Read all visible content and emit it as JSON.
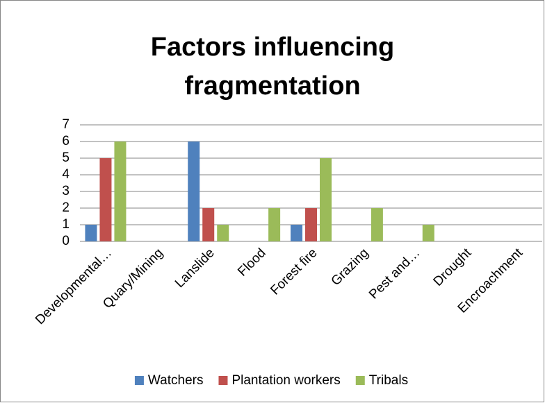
{
  "chart_data": {
    "type": "bar",
    "title": "Factors influencing fragmentation",
    "categories": [
      "Developmental…",
      "Quary/Mining",
      "Lanslide",
      "Flood",
      "Forest fire",
      "Grazing",
      "Pest and…",
      "Drought",
      "Encroachment"
    ],
    "series": [
      {
        "name": "Watchers",
        "color": "#4f81bd",
        "values": [
          1,
          0,
          6,
          0,
          1,
          0,
          0,
          0,
          0
        ]
      },
      {
        "name": "Plantation workers",
        "color": "#c0504d",
        "values": [
          5,
          0,
          2,
          0,
          2,
          0,
          0,
          0,
          0
        ]
      },
      {
        "name": "Tribals",
        "color": "#9bbb59",
        "values": [
          6,
          0,
          1,
          2,
          5,
          2,
          1,
          0,
          0
        ]
      }
    ],
    "ylim": [
      0,
      7
    ],
    "yticks": [
      0,
      1,
      2,
      3,
      4,
      5,
      6,
      7
    ],
    "grid": true,
    "legend": "bottom"
  }
}
